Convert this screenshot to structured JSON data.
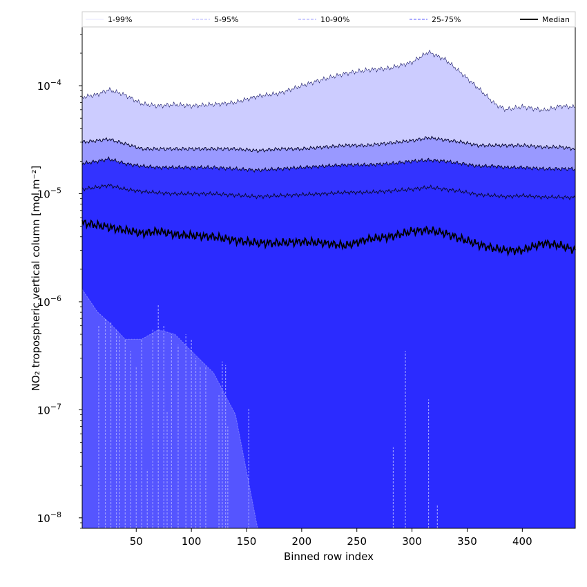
{
  "chart_data": {
    "type": "area",
    "xlabel": "Binned row index",
    "ylabel": "NO₂ tropospheric vertical column [mol m⁻²]",
    "yscale": "log",
    "xlim": [
      1,
      448
    ],
    "ylim": [
      8e-09,
      0.00035
    ],
    "x_ticks": [
      50,
      100,
      150,
      200,
      250,
      300,
      350,
      400
    ],
    "y_ticks": [
      {
        "value": 1e-08,
        "mantissa": "10",
        "exp": "−8"
      },
      {
        "value": 1e-07,
        "mantissa": "10",
        "exp": "−7"
      },
      {
        "value": 1e-06,
        "mantissa": "10",
        "exp": "−6"
      },
      {
        "value": 1e-05,
        "mantissa": "10",
        "exp": "−5"
      },
      {
        "value": 0.0001,
        "mantissa": "10",
        "exp": "−4"
      }
    ],
    "grid": false,
    "legend_position": "top",
    "legend": [
      {
        "label": "1-99%",
        "color": "#e6e6ff",
        "style": "solid"
      },
      {
        "label": "5-95%",
        "color": "#b3b3ff",
        "style": "dashed"
      },
      {
        "label": "10-90%",
        "color": "#9999ff",
        "style": "dashed"
      },
      {
        "label": "25-75%",
        "color": "#5555ff",
        "style": "dashed"
      },
      {
        "label": "Median",
        "color": "#000000",
        "style": "solid"
      }
    ],
    "band_colors": {
      "p1_p5": "#5555ff",
      "p5_p10": "#3f3fff",
      "p10_p25": "#3333ff",
      "p25_p75": "#2b2bff",
      "p75_p90": "#6666ff",
      "p90_p95": "#9999ff",
      "p95_p99": "#ccccff"
    },
    "x": [
      1,
      15,
      25,
      40,
      55,
      70,
      85,
      100,
      120,
      140,
      160,
      180,
      200,
      220,
      240,
      260,
      280,
      300,
      315,
      330,
      345,
      360,
      375,
      385,
      400,
      420,
      435,
      448
    ],
    "series": [
      {
        "name": "P99",
        "values": [
          7.8e-05,
          8.3e-05,
          9.2e-05,
          8.2e-05,
          6.8e-05,
          6.5e-05,
          6.7e-05,
          6.5e-05,
          6.7e-05,
          7e-05,
          8e-05,
          8.5e-05,
          0.0001,
          0.000115,
          0.00013,
          0.00014,
          0.000145,
          0.000165,
          0.000205,
          0.000175,
          0.00013,
          9.5e-05,
          6.8e-05,
          6e-05,
          6.4e-05,
          5.9e-05,
          6.5e-05,
          6.3e-05
        ]
      },
      {
        "name": "P95",
        "values": [
          3e-05,
          3.1e-05,
          3.2e-05,
          2.9e-05,
          2.6e-05,
          2.6e-05,
          2.6e-05,
          2.6e-05,
          2.6e-05,
          2.6e-05,
          2.5e-05,
          2.6e-05,
          2.6e-05,
          2.7e-05,
          2.8e-05,
          2.8e-05,
          2.95e-05,
          3.1e-05,
          3.3e-05,
          3.15e-05,
          3e-05,
          2.8e-05,
          2.8e-05,
          2.8e-05,
          2.8e-05,
          2.7e-05,
          2.7e-05,
          2.6e-05
        ]
      },
      {
        "name": "P90",
        "values": [
          1.9e-05,
          2e-05,
          2.1e-05,
          1.9e-05,
          1.8e-05,
          1.75e-05,
          1.75e-05,
          1.75e-05,
          1.75e-05,
          1.7e-05,
          1.65e-05,
          1.7e-05,
          1.75e-05,
          1.8e-05,
          1.85e-05,
          1.85e-05,
          1.9e-05,
          2e-05,
          2.05e-05,
          2e-05,
          1.9e-05,
          1.8e-05,
          1.8e-05,
          1.75e-05,
          1.75e-05,
          1.7e-05,
          1.7e-05,
          1.7e-05
        ]
      },
      {
        "name": "P75",
        "values": [
          1.1e-05,
          1.15e-05,
          1.2e-05,
          1.1e-05,
          1.05e-05,
          1.02e-05,
          1e-05,
          1e-05,
          1e-05,
          9.7e-06,
          9.4e-06,
          9.6e-06,
          9.8e-06,
          1e-05,
          1.03e-05,
          1.03e-05,
          1.06e-05,
          1.1e-05,
          1.15e-05,
          1.1e-05,
          1.05e-05,
          9.8e-06,
          9.6e-06,
          9.4e-06,
          9.6e-06,
          9.3e-06,
          9.3e-06,
          9.2e-06
        ]
      },
      {
        "name": "Median",
        "values": [
          5.4e-06,
          5.1e-06,
          4.9e-06,
          4.6e-06,
          4.3e-06,
          4.5e-06,
          4.2e-06,
          4.1e-06,
          4e-06,
          3.7e-06,
          3.5e-06,
          3.5e-06,
          3.6e-06,
          3.5e-06,
          3.3e-06,
          3.8e-06,
          4e-06,
          4.5e-06,
          4.6e-06,
          4.3e-06,
          3.8e-06,
          3.4e-06,
          3.1e-06,
          3e-06,
          3e-06,
          3.5e-06,
          3.3e-06,
          3e-06
        ]
      },
      {
        "name": "P25",
        "values": [
          1.3e-06,
          8e-07,
          6.5e-07,
          4.5e-07,
          4.5e-07,
          5.5e-07,
          5e-07,
          3.5e-07,
          2.2e-07,
          9e-08,
          8e-09,
          8e-09,
          8e-09,
          8e-09,
          8e-09,
          8e-09,
          8e-09,
          8e-09,
          8e-09,
          8e-09,
          8e-09,
          8e-09,
          8e-09,
          8e-09,
          8e-09,
          8e-09,
          8e-09,
          8e-09
        ]
      }
    ],
    "spikes": [
      {
        "x": 16,
        "y": 6e-07
      },
      {
        "x": 22,
        "y": 7e-07
      },
      {
        "x": 27,
        "y": 6.5e-07
      },
      {
        "x": 32,
        "y": 5.5e-07
      },
      {
        "x": 35,
        "y": 4.8e-07
      },
      {
        "x": 40,
        "y": 4.5e-07
      },
      {
        "x": 45,
        "y": 3.5e-07
      },
      {
        "x": 50,
        "y": 2.5e-07
      },
      {
        "x": 55,
        "y": 4.5e-07
      },
      {
        "x": 60,
        "y": 2.8e-08
      },
      {
        "x": 65,
        "y": 5.5e-07
      },
      {
        "x": 70,
        "y": 9.5e-07
      },
      {
        "x": 75,
        "y": 6e-07
      },
      {
        "x": 78,
        "y": 9.5e-08
      },
      {
        "x": 82,
        "y": 5e-07
      },
      {
        "x": 88,
        "y": 4e-07
      },
      {
        "x": 95,
        "y": 5e-07
      },
      {
        "x": 100,
        "y": 4.5e-07
      },
      {
        "x": 104,
        "y": 3e-07
      },
      {
        "x": 108,
        "y": 2.5e-07
      },
      {
        "x": 113,
        "y": 2.5e-07
      },
      {
        "x": 125,
        "y": 1.4e-07
      },
      {
        "x": 128,
        "y": 2.8e-07
      },
      {
        "x": 131,
        "y": 2.6e-07
      },
      {
        "x": 133,
        "y": 7e-08
      },
      {
        "x": 152,
        "y": 1.05e-07
      },
      {
        "x": 283,
        "y": 4.5e-08
      },
      {
        "x": 294,
        "y": 3.5e-07
      },
      {
        "x": 315,
        "y": 1.25e-07
      },
      {
        "x": 323,
        "y": 1.3e-08
      }
    ]
  }
}
